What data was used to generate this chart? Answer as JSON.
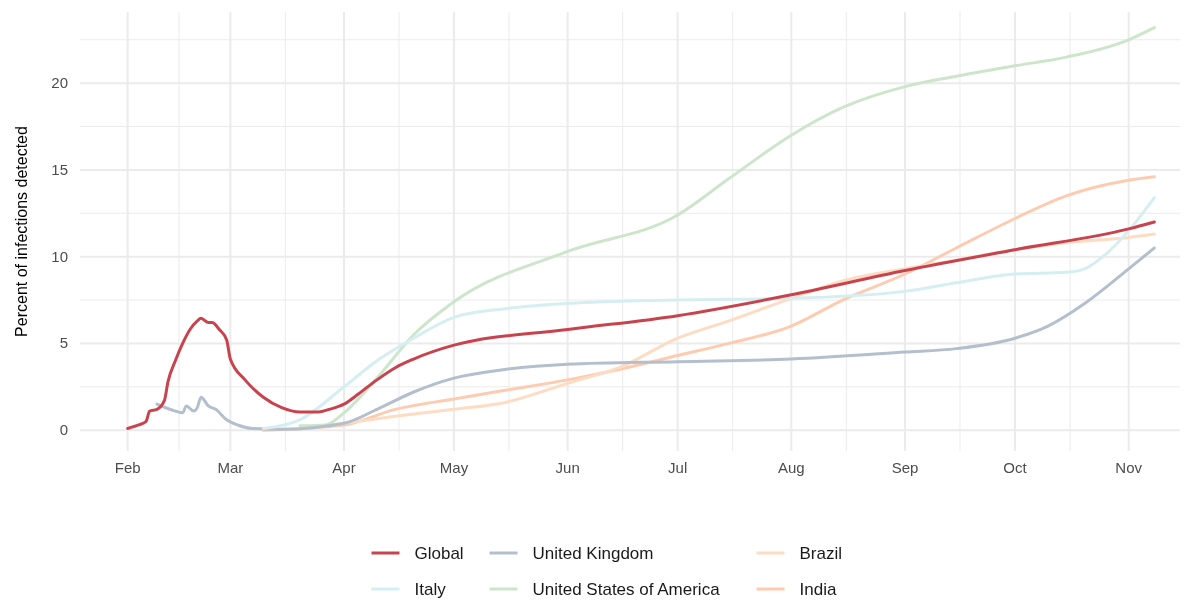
{
  "chart_data": {
    "type": "line",
    "ylabel": "Percent of infections detected",
    "legend": "bottom",
    "grid": true,
    "xlim": [
      "--01-19",
      "--11-15"
    ],
    "xticks": [
      {
        "value": "--02-01",
        "label": "Feb"
      },
      {
        "value": "--02-15",
        "label": null
      },
      {
        "value": "--03-01",
        "label": "Mar"
      },
      {
        "value": "--03-16",
        "label": null
      },
      {
        "value": "--04-01",
        "label": "Apr"
      },
      {
        "value": "--04-16",
        "label": null
      },
      {
        "value": "--05-01",
        "label": "May"
      },
      {
        "value": "--05-16",
        "label": null
      },
      {
        "value": "--06-01",
        "label": "Jun"
      },
      {
        "value": "--06-16",
        "label": null
      },
      {
        "value": "--07-01",
        "label": "Jul"
      },
      {
        "value": "--07-16",
        "label": null
      },
      {
        "value": "--08-01",
        "label": "Aug"
      },
      {
        "value": "--08-16",
        "label": null
      },
      {
        "value": "--09-01",
        "label": "Sep"
      },
      {
        "value": "--09-16",
        "label": null
      },
      {
        "value": "--10-01",
        "label": "Oct"
      },
      {
        "value": "--10-16",
        "label": null
      },
      {
        "value": "--11-01",
        "label": "Nov"
      }
    ],
    "ylim": [
      -1.2,
      24.1
    ],
    "yticks": [
      0,
      {
        "value": 2.5,
        "label": null
      },
      5,
      {
        "value": 7.5,
        "label": null
      },
      10,
      {
        "value": 12.5,
        "label": null
      },
      15,
      {
        "value": 17.5,
        "label": null
      },
      20,
      {
        "value": 22.5,
        "label": null
      }
    ],
    "series": [
      {
        "name": "Global",
        "color": "#c8434d",
        "x": [
          "--02-01",
          "--02-04",
          "--02-06",
          "--02-07",
          "--02-09",
          "--02-11",
          "--02-12",
          "--02-14",
          "--02-16",
          "--02-18",
          "--02-20",
          "--02-21",
          "--02-23",
          "--02-24",
          "--02-26",
          "--02-28",
          "--03-01",
          "--03-05",
          "--03-10",
          "--03-15",
          "--03-20",
          "--03-25",
          "--03-28",
          "--04-01",
          "--04-05",
          "--04-10",
          "--04-15",
          "--04-20",
          "--05-01",
          "--06-01",
          "--07-01",
          "--08-01",
          "--09-01",
          "--10-01",
          "--11-01",
          "--11-08"
        ],
        "values": [
          0.1,
          0.3,
          0.5,
          1.1,
          1.2,
          1.7,
          2.8,
          4.0,
          5.0,
          5.8,
          6.3,
          6.45,
          6.2,
          6.2,
          5.8,
          5.2,
          4.1,
          2.9,
          1.9,
          1.3,
          1.05,
          1.05,
          1.2,
          1.5,
          2.1,
          2.9,
          3.6,
          4.1,
          4.9,
          5.8,
          6.6,
          7.8,
          9.2,
          10.4,
          11.6,
          12.0
        ]
      },
      {
        "name": "Italy",
        "color": "#d5eef1",
        "x": [
          "--03-10",
          "--03-20",
          "--04-01",
          "--04-10",
          "--04-20",
          "--05-01",
          "--05-15",
          "--06-01",
          "--07-01",
          "--08-01",
          "--09-01",
          "--09-15",
          "--10-01",
          "--10-15",
          "--10-20",
          "--10-25",
          "--11-01",
          "--11-08"
        ],
        "values": [
          0.1,
          0.6,
          2.5,
          4.0,
          5.3,
          6.5,
          7.0,
          7.3,
          7.5,
          7.6,
          8.0,
          8.5,
          9.0,
          9.1,
          9.3,
          10.0,
          11.5,
          13.4
        ]
      },
      {
        "name": "United Kingdom",
        "color": "#b3bfcd",
        "x": [
          "--02-09",
          "--02-14",
          "--02-16",
          "--02-17",
          "--02-19",
          "--02-20",
          "--02-21",
          "--02-23",
          "--02-25",
          "--02-28",
          "--03-03",
          "--03-07",
          "--03-15",
          "--04-01",
          "--04-10",
          "--04-20",
          "--05-01",
          "--05-15",
          "--06-01",
          "--07-01",
          "--08-01",
          "--09-01",
          "--09-15",
          "--10-01",
          "--10-10",
          "--10-20",
          "--11-01",
          "--11-08"
        ],
        "values": [
          1.5,
          1.1,
          1.0,
          1.4,
          1.1,
          1.3,
          1.9,
          1.4,
          1.2,
          0.6,
          0.3,
          0.1,
          0.05,
          0.4,
          1.2,
          2.2,
          3.0,
          3.5,
          3.8,
          3.95,
          4.1,
          4.5,
          4.7,
          5.3,
          6.0,
          7.3,
          9.3,
          10.5
        ]
      },
      {
        "name": "United States of America",
        "color": "#cde5cb",
        "x": [
          "--03-20",
          "--03-27",
          "--04-01",
          "--04-10",
          "--04-20",
          "--05-01",
          "--06-01",
          "--07-01",
          "--07-15",
          "--08-01",
          "--08-15",
          "--09-01",
          "--09-15",
          "--10-01",
          "--10-15",
          "--11-01",
          "--11-08"
        ],
        "values": [
          0.25,
          0.3,
          1.0,
          3.0,
          5.5,
          7.4,
          10.3,
          12.4,
          14.5,
          17.0,
          18.6,
          19.8,
          20.4,
          21.0,
          21.5,
          22.5,
          23.2
        ]
      },
      {
        "name": "Brazil",
        "color": "#fddcc4",
        "x": [
          "--03-20",
          "--04-01",
          "--04-15",
          "--05-01",
          "--05-15",
          "--06-01",
          "--06-15",
          "--07-01",
          "--07-15",
          "--08-01",
          "--08-15",
          "--09-01",
          "--09-15",
          "--10-01",
          "--10-15",
          "--11-01",
          "--11-08"
        ],
        "values": [
          0.05,
          0.4,
          0.8,
          1.2,
          1.6,
          2.7,
          3.6,
          5.3,
          6.3,
          7.6,
          8.6,
          9.3,
          9.8,
          10.4,
          10.8,
          11.1,
          11.3
        ]
      },
      {
        "name": "India",
        "color": "#fdcbb0",
        "x": [
          "--03-10",
          "--04-01",
          "--04-15",
          "--05-01",
          "--05-15",
          "--06-01",
          "--06-15",
          "--07-01",
          "--07-15",
          "--08-01",
          "--08-15",
          "--09-01",
          "--09-15",
          "--10-01",
          "--10-15",
          "--11-01",
          "--11-08"
        ],
        "values": [
          0.0,
          0.3,
          1.2,
          1.8,
          2.3,
          2.9,
          3.5,
          4.3,
          5.0,
          6.0,
          7.5,
          9.0,
          10.5,
          12.2,
          13.5,
          14.4,
          14.6
        ]
      }
    ]
  }
}
